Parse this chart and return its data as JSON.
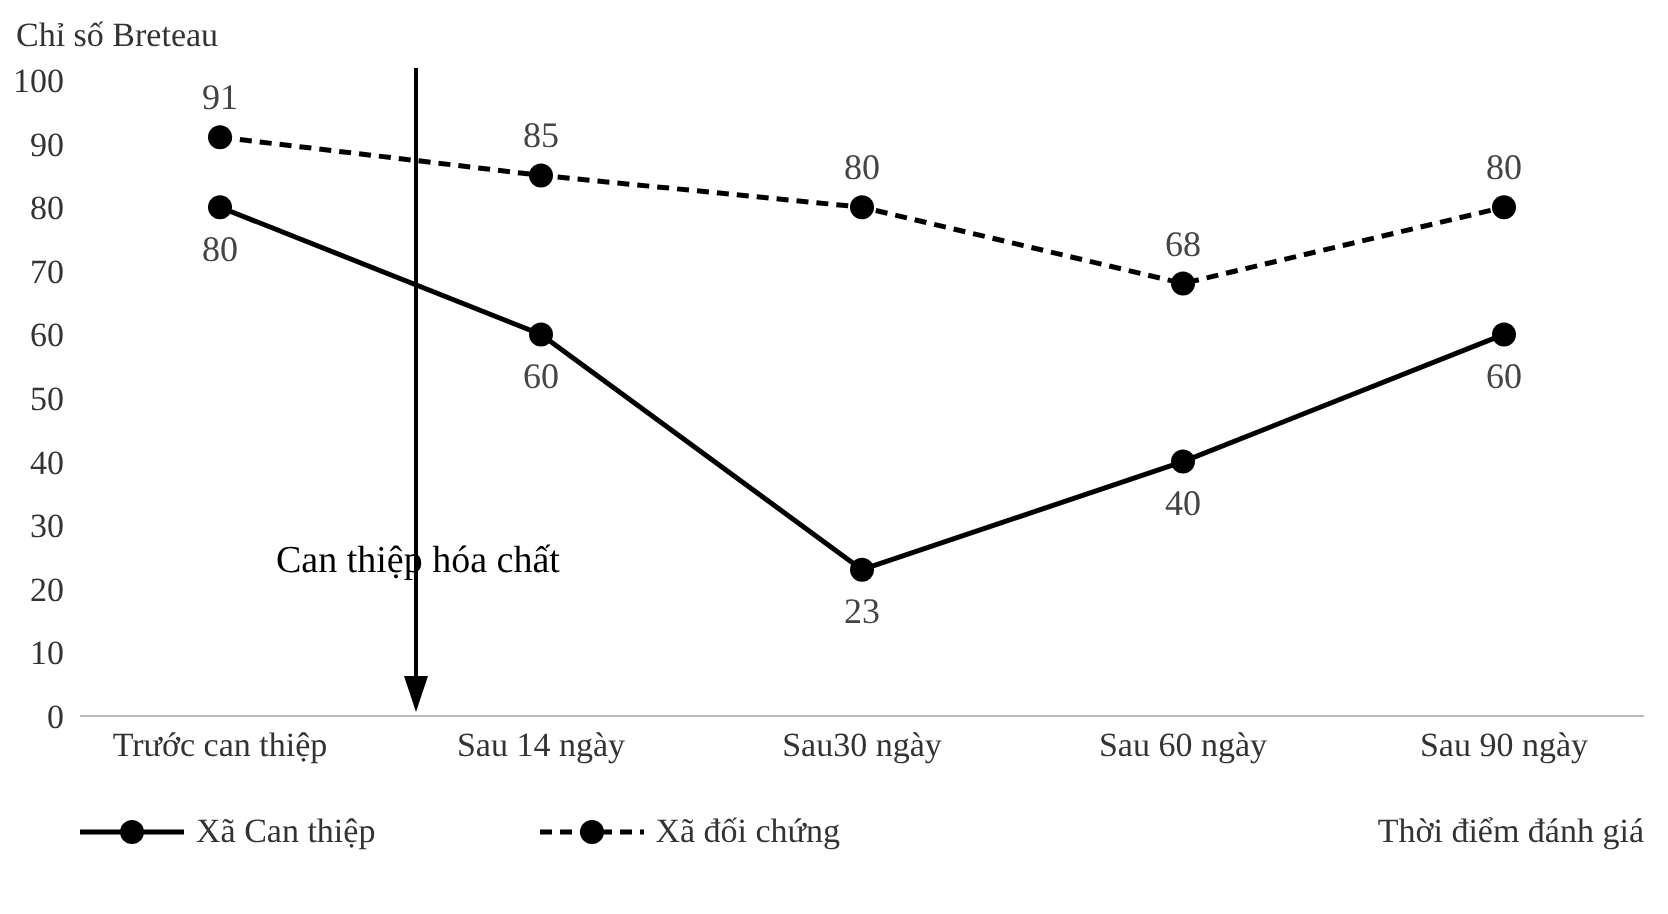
{
  "chart_data": {
    "type": "line",
    "ylabel": "Chỉ số Breteau",
    "xlabel": "Thời điểm đánh giá",
    "categories": [
      "Trước can thiệp",
      "Sau 14 ngày",
      "Sau30 ngày",
      "Sau 60 ngày",
      "Sau 90 ngày"
    ],
    "series": [
      {
        "name": "Xã Can thiệp",
        "color": "#000000",
        "values": [
          80,
          60,
          23,
          40,
          60
        ],
        "line_style": "solid"
      },
      {
        "name": "Xã đối chứng",
        "color": "#000000",
        "values": [
          91,
          85,
          80,
          68,
          80
        ],
        "line_style": "dashed"
      }
    ],
    "ylim": [
      0,
      100
    ],
    "yticks": [
      0,
      10,
      20,
      30,
      40,
      50,
      60,
      70,
      80,
      90,
      100
    ],
    "grid": false,
    "legend": "bottom left",
    "marker": "circle",
    "data_labels": true,
    "annotations": [
      "Can thiệp hóa chất"
    ]
  }
}
